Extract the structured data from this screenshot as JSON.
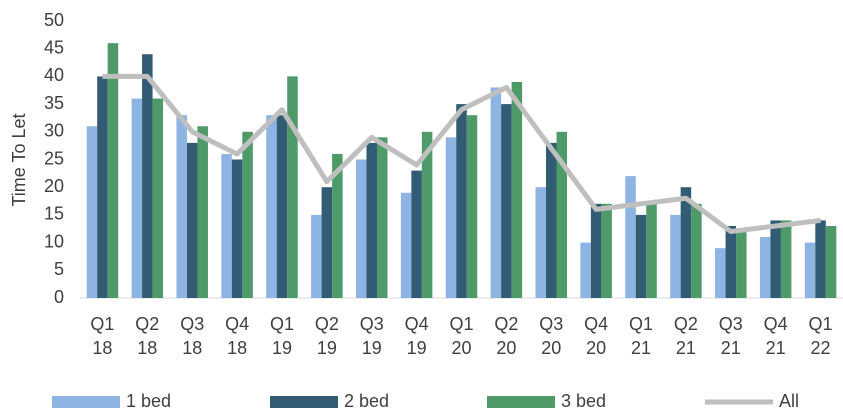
{
  "chart_data": {
    "type": "bar",
    "y_label": "Time To Let",
    "categories": [
      "Q1\n18",
      "Q2\n18",
      "Q3\n18",
      "Q4\n18",
      "Q1\n19",
      "Q2\n19",
      "Q3\n19",
      "Q4\n19",
      "Q1\n20",
      "Q2\n20",
      "Q3\n20",
      "Q4\n20",
      "Q1\n21",
      "Q2\n21",
      "Q3\n21",
      "Q4\n21",
      "Q1\n22"
    ],
    "series": [
      {
        "name": "1 bed",
        "type": "bar",
        "color": "#8eb4e3",
        "values": [
          31,
          36,
          33,
          26,
          33,
          15,
          25,
          19,
          29,
          38,
          20,
          10,
          22,
          15,
          9,
          11,
          10
        ]
      },
      {
        "name": "2 bed",
        "type": "bar",
        "color": "#325b74",
        "values": [
          40,
          44,
          28,
          25,
          33,
          20,
          28,
          23,
          35,
          35,
          28,
          17,
          15,
          20,
          13,
          14,
          14
        ]
      },
      {
        "name": "3 bed",
        "type": "bar",
        "color": "#4e9a68",
        "values": [
          46,
          36,
          31,
          30,
          40,
          26,
          29,
          30,
          33,
          39,
          30,
          17,
          17,
          17,
          12,
          14,
          13
        ]
      },
      {
        "name": "All",
        "type": "line",
        "color": "#bfbfbf",
        "values": [
          40,
          40,
          30,
          26,
          34,
          21,
          29,
          24,
          34,
          38,
          27,
          16,
          17,
          18,
          12,
          13,
          14
        ]
      }
    ],
    "ylim": [
      0,
      50
    ],
    "yticks": [
      0,
      5,
      10,
      15,
      20,
      25,
      30,
      35,
      40,
      45,
      50
    ],
    "grid": false,
    "legend": "bottom"
  }
}
